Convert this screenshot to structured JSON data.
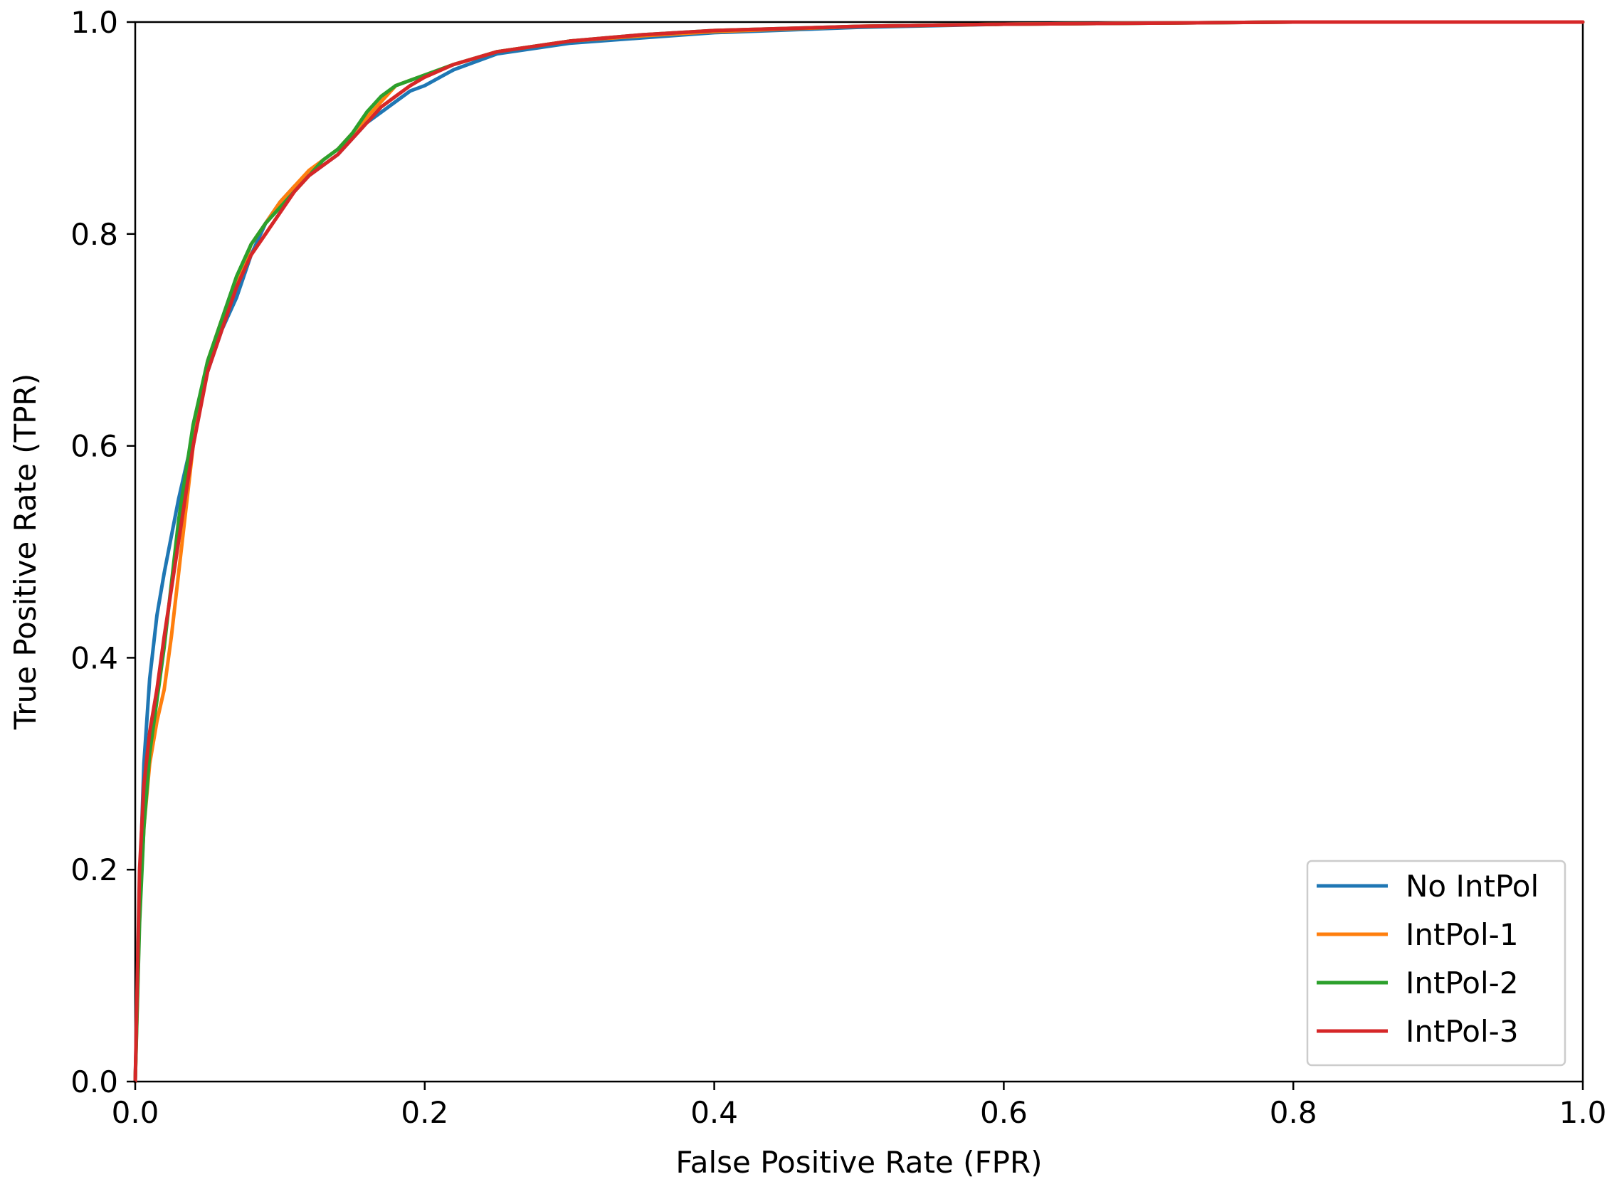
{
  "chart_data": {
    "type": "line",
    "title": "",
    "xlabel": "False Positive Rate (FPR)",
    "ylabel": "True Positive Rate (TPR)",
    "xlim": [
      0.0,
      1.0
    ],
    "ylim": [
      0.0,
      1.0
    ],
    "xticks": [
      "0.0",
      "0.2",
      "0.4",
      "0.6",
      "0.8",
      "1.0"
    ],
    "yticks": [
      "0.0",
      "0.2",
      "0.4",
      "0.6",
      "0.8",
      "1.0"
    ],
    "grid": false,
    "legend_position": "lower-right",
    "series": [
      {
        "name": "No IntPol",
        "color": "#1f77b4",
        "x": [
          0.0,
          0.003,
          0.006,
          0.01,
          0.015,
          0.02,
          0.03,
          0.04,
          0.05,
          0.06,
          0.07,
          0.08,
          0.09,
          0.1,
          0.11,
          0.12,
          0.13,
          0.14,
          0.15,
          0.16,
          0.17,
          0.18,
          0.19,
          0.2,
          0.22,
          0.25,
          0.3,
          0.35,
          0.4,
          0.5,
          0.6,
          0.7,
          0.8,
          0.9,
          1.0
        ],
        "y": [
          0.0,
          0.18,
          0.3,
          0.38,
          0.44,
          0.48,
          0.55,
          0.61,
          0.67,
          0.71,
          0.74,
          0.78,
          0.81,
          0.83,
          0.845,
          0.855,
          0.865,
          0.875,
          0.89,
          0.905,
          0.915,
          0.925,
          0.935,
          0.94,
          0.955,
          0.97,
          0.98,
          0.985,
          0.99,
          0.995,
          0.998,
          0.999,
          1.0,
          1.0,
          1.0
        ]
      },
      {
        "name": "IntPol-1",
        "color": "#ff7f0e",
        "x": [
          0.0,
          0.003,
          0.006,
          0.01,
          0.015,
          0.02,
          0.025,
          0.03,
          0.04,
          0.05,
          0.06,
          0.07,
          0.08,
          0.09,
          0.1,
          0.11,
          0.12,
          0.13,
          0.14,
          0.15,
          0.16,
          0.17,
          0.18,
          0.19,
          0.2,
          0.22,
          0.25,
          0.3,
          0.35,
          0.4,
          0.5,
          0.6,
          0.7,
          0.8,
          0.9,
          1.0
        ],
        "y": [
          0.0,
          0.16,
          0.24,
          0.3,
          0.34,
          0.37,
          0.42,
          0.48,
          0.6,
          0.68,
          0.72,
          0.75,
          0.79,
          0.81,
          0.83,
          0.845,
          0.86,
          0.87,
          0.88,
          0.895,
          0.91,
          0.925,
          0.94,
          0.945,
          0.95,
          0.96,
          0.972,
          0.982,
          0.987,
          0.991,
          0.996,
          0.998,
          0.999,
          1.0,
          1.0,
          1.0
        ]
      },
      {
        "name": "IntPol-2",
        "color": "#2ca02c",
        "x": [
          0.0,
          0.003,
          0.006,
          0.01,
          0.015,
          0.02,
          0.03,
          0.04,
          0.05,
          0.06,
          0.07,
          0.08,
          0.09,
          0.1,
          0.11,
          0.12,
          0.13,
          0.14,
          0.15,
          0.16,
          0.17,
          0.18,
          0.19,
          0.2,
          0.22,
          0.25,
          0.3,
          0.35,
          0.4,
          0.5,
          0.6,
          0.7,
          0.8,
          0.9,
          1.0
        ],
        "y": [
          0.0,
          0.15,
          0.24,
          0.31,
          0.36,
          0.41,
          0.53,
          0.62,
          0.68,
          0.72,
          0.76,
          0.79,
          0.81,
          0.825,
          0.84,
          0.855,
          0.87,
          0.88,
          0.895,
          0.915,
          0.93,
          0.94,
          0.945,
          0.95,
          0.96,
          0.972,
          0.982,
          0.988,
          0.992,
          0.996,
          0.998,
          0.999,
          1.0,
          1.0,
          1.0
        ]
      },
      {
        "name": "IntPol-3",
        "color": "#d62728",
        "x": [
          0.0,
          0.003,
          0.006,
          0.01,
          0.015,
          0.02,
          0.03,
          0.04,
          0.05,
          0.06,
          0.07,
          0.08,
          0.09,
          0.1,
          0.11,
          0.12,
          0.13,
          0.14,
          0.15,
          0.16,
          0.17,
          0.18,
          0.19,
          0.2,
          0.22,
          0.25,
          0.3,
          0.35,
          0.4,
          0.5,
          0.6,
          0.7,
          0.8,
          0.9,
          1.0
        ],
        "y": [
          0.0,
          0.2,
          0.28,
          0.33,
          0.37,
          0.42,
          0.51,
          0.6,
          0.67,
          0.71,
          0.75,
          0.78,
          0.8,
          0.82,
          0.84,
          0.855,
          0.865,
          0.875,
          0.89,
          0.905,
          0.92,
          0.93,
          0.94,
          0.948,
          0.96,
          0.972,
          0.982,
          0.988,
          0.992,
          0.996,
          0.998,
          0.999,
          1.0,
          1.0,
          1.0
        ]
      }
    ]
  }
}
